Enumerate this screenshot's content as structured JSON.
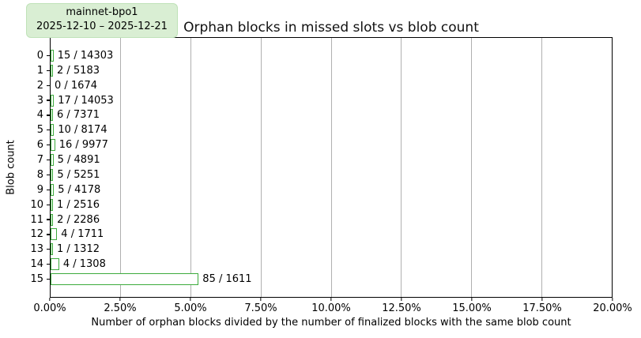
{
  "header": {
    "legend": {
      "line1": "mainnet-bpo1",
      "line2": "2025-12-10 – 2025-12-21"
    }
  },
  "colors": {
    "bar_edge": "#3cab3c",
    "bar_fill": "#ffffff",
    "legend_bg": "#d9eed3",
    "legend_border": "#bfe2b8",
    "grid": "#b0b0b0",
    "spine": "#000000"
  },
  "chart_data": {
    "type": "bar",
    "orientation": "horizontal",
    "title": "Orphan blocks in missed slots vs blob count",
    "xlabel": "Number of orphan blocks divided by the number of finalized blocks with the same blob count",
    "ylabel": "Blob count",
    "categories": [
      "0",
      "1",
      "2",
      "3",
      "4",
      "5",
      "6",
      "7",
      "8",
      "9",
      "10",
      "11",
      "12",
      "13",
      "14",
      "15"
    ],
    "series": [
      {
        "name": "orphan_blocks",
        "values": [
          15,
          2,
          0,
          17,
          6,
          10,
          16,
          5,
          5,
          5,
          1,
          2,
          4,
          1,
          4,
          85
        ]
      },
      {
        "name": "finalized_blocks",
        "values": [
          14303,
          5183,
          1674,
          14053,
          7371,
          8174,
          9977,
          4891,
          5251,
          4178,
          2516,
          2286,
          1711,
          1312,
          1308,
          1611
        ]
      }
    ],
    "values_pct": [
      0.1049,
      0.0386,
      0.0,
      0.121,
      0.0814,
      0.1223,
      0.1604,
      0.1022,
      0.0952,
      0.1197,
      0.0397,
      0.0875,
      0.2338,
      0.0762,
      0.3058,
      5.2762
    ],
    "bar_labels": [
      "15 / 14303",
      "2 / 5183",
      "0 / 1674",
      "17 / 14053",
      "6 / 7371",
      "10 / 8174",
      "16 / 9977",
      "5 / 4891",
      "5 / 5251",
      "5 / 4178",
      "1 / 2516",
      "2 / 2286",
      "4 / 1711",
      "1 / 1312",
      "4 / 1308",
      "85 / 1611"
    ],
    "xlim": [
      0,
      20
    ],
    "xticks": [
      "0.00%",
      "2.50%",
      "5.00%",
      "7.50%",
      "10.00%",
      "12.50%",
      "15.00%",
      "17.50%",
      "20.00%"
    ],
    "grid": "vertical",
    "legend_position": "top-left"
  }
}
